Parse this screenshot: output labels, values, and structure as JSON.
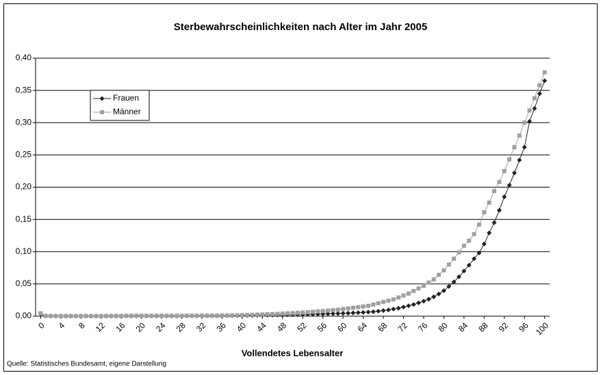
{
  "chart_data": {
    "type": "line",
    "title": "Sterbewahrscheinlichkeiten nach Alter im Jahr 2005",
    "xlabel": "Vollendetes Lebensalter",
    "source": "Quelle: Statistisches Bundesamt, eigene Darstellung",
    "x": [
      0,
      1,
      2,
      3,
      4,
      5,
      6,
      7,
      8,
      9,
      10,
      11,
      12,
      13,
      14,
      15,
      16,
      17,
      18,
      19,
      20,
      21,
      22,
      23,
      24,
      25,
      26,
      27,
      28,
      29,
      30,
      31,
      32,
      33,
      34,
      35,
      36,
      37,
      38,
      39,
      40,
      41,
      42,
      43,
      44,
      45,
      46,
      47,
      48,
      49,
      50,
      51,
      52,
      53,
      54,
      55,
      56,
      57,
      58,
      59,
      60,
      61,
      62,
      63,
      64,
      65,
      66,
      67,
      68,
      69,
      70,
      71,
      72,
      73,
      74,
      75,
      76,
      77,
      78,
      79,
      80,
      81,
      82,
      83,
      84,
      85,
      86,
      87,
      88,
      89,
      90,
      91,
      92,
      93,
      94,
      95,
      96,
      97,
      98,
      99,
      100
    ],
    "series": [
      {
        "name": "Frauen",
        "color": "#222222",
        "marker": "diamond",
        "values": [
          0.0037,
          0.0003,
          0.0002,
          0.0001,
          0.0001,
          0.0001,
          0.0001,
          0.0001,
          0.0001,
          0.0001,
          0.0001,
          0.0001,
          0.0001,
          0.0001,
          0.0002,
          0.0002,
          0.0002,
          0.0003,
          0.0003,
          0.0003,
          0.0003,
          0.0003,
          0.0003,
          0.0003,
          0.0003,
          0.0003,
          0.0003,
          0.0003,
          0.0003,
          0.0004,
          0.0004,
          0.0004,
          0.0004,
          0.0005,
          0.0005,
          0.0005,
          0.0006,
          0.0007,
          0.0008,
          0.0008,
          0.0009,
          0.001,
          0.0011,
          0.0012,
          0.0014,
          0.0015,
          0.0016,
          0.0018,
          0.0019,
          0.0021,
          0.0023,
          0.0025,
          0.0027,
          0.0029,
          0.0031,
          0.0033,
          0.0035,
          0.0037,
          0.0039,
          0.0041,
          0.0044,
          0.0047,
          0.005,
          0.0054,
          0.0058,
          0.0063,
          0.0069,
          0.0077,
          0.0086,
          0.0097,
          0.011,
          0.0124,
          0.0141,
          0.016,
          0.018,
          0.0205,
          0.0232,
          0.0263,
          0.03,
          0.0343,
          0.0395,
          0.046,
          0.053,
          0.061,
          0.07,
          0.079,
          0.089,
          0.098,
          0.112,
          0.129,
          0.145,
          0.164,
          0.185,
          0.203,
          0.222,
          0.242,
          0.262,
          0.302,
          0.322,
          0.345,
          0.365
        ]
      },
      {
        "name": "Männer",
        "color": "#a0a0a0",
        "marker": "square",
        "values": [
          0.0045,
          0.0004,
          0.0002,
          0.0002,
          0.0001,
          0.0001,
          0.0001,
          0.0001,
          0.0001,
          0.0001,
          0.0001,
          0.0001,
          0.0001,
          0.0002,
          0.0002,
          0.0003,
          0.0004,
          0.0005,
          0.0007,
          0.0007,
          0.0007,
          0.0007,
          0.0007,
          0.0007,
          0.0007,
          0.0007,
          0.0007,
          0.0007,
          0.0007,
          0.0008,
          0.0008,
          0.0008,
          0.0008,
          0.0009,
          0.0009,
          0.001,
          0.0011,
          0.0012,
          0.0013,
          0.0015,
          0.0017,
          0.0019,
          0.0021,
          0.0024,
          0.0027,
          0.003,
          0.0033,
          0.0036,
          0.004,
          0.0044,
          0.0048,
          0.0052,
          0.0057,
          0.0062,
          0.0068,
          0.0074,
          0.008,
          0.0086,
          0.0093,
          0.01,
          0.011,
          0.012,
          0.013,
          0.014,
          0.015,
          0.016,
          0.018,
          0.02,
          0.022,
          0.024,
          0.026,
          0.029,
          0.032,
          0.035,
          0.039,
          0.043,
          0.047,
          0.052,
          0.057,
          0.064,
          0.071,
          0.08,
          0.089,
          0.099,
          0.109,
          0.117,
          0.127,
          0.142,
          0.161,
          0.176,
          0.194,
          0.208,
          0.225,
          0.243,
          0.262,
          0.28,
          0.3,
          0.319,
          0.338,
          0.358,
          0.378
        ]
      }
    ],
    "xlim": [
      -1,
      101
    ],
    "xticks": [
      0,
      4,
      8,
      12,
      16,
      20,
      24,
      28,
      32,
      36,
      40,
      44,
      48,
      52,
      56,
      60,
      64,
      68,
      72,
      76,
      80,
      84,
      88,
      92,
      96,
      100
    ],
    "ylim": [
      0,
      0.4
    ],
    "yticks": [
      {
        "value": 0,
        "label": "0,00"
      },
      {
        "value": 0.05,
        "label": "0,05"
      },
      {
        "value": 0.1,
        "label": "0,10"
      },
      {
        "value": 0.15,
        "label": "0,15"
      },
      {
        "value": 0.2,
        "label": "0,20"
      },
      {
        "value": 0.25,
        "label": "0,25"
      },
      {
        "value": 0.3,
        "label": "0,30"
      },
      {
        "value": 0.35,
        "label": "0,35"
      },
      {
        "value": 0.4,
        "label": "0,40"
      }
    ],
    "grid": true,
    "legend": "upper-left"
  }
}
